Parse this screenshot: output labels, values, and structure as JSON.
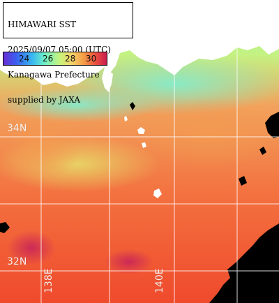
{
  "title_lines": [
    "HIMAWARI SST",
    "2025/09/07 05:00 (UTC)",
    "Kanagawa Prefecture",
    "supplied by JAXA"
  ],
  "legend": {
    "ticks": [
      "24",
      "26",
      "28",
      "30"
    ],
    "colors": [
      "#6a2fd3",
      "#3a5df0",
      "#3ab8f0",
      "#6ff0c6",
      "#c8f27a",
      "#f7d36a",
      "#f39a44",
      "#e94b3f",
      "#c81d4f"
    ]
  },
  "grid_labels": {
    "lat": [
      "34N",
      "32N"
    ],
    "lon": [
      "138E",
      "140E"
    ]
  },
  "colors": {
    "land": "#ffffff",
    "no_data": "#000000",
    "grid": "#ffffff"
  }
}
